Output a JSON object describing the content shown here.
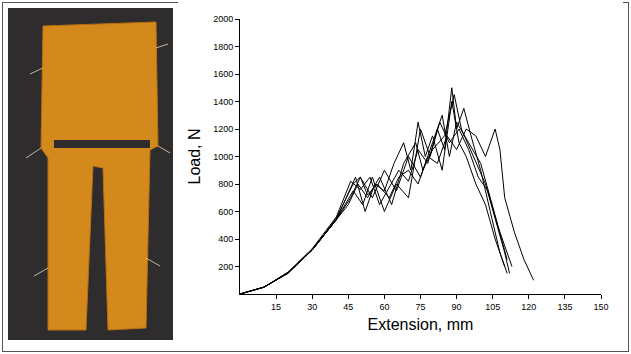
{
  "chart_data": {
    "type": "line",
    "xlabel": "Extension, mm",
    "ylabel": "Load, N",
    "xlim": [
      0,
      150
    ],
    "ylim": [
      0,
      2000
    ],
    "xticks": [
      15,
      30,
      45,
      60,
      75,
      90,
      105,
      120,
      135,
      150
    ],
    "yticks": [
      200,
      400,
      600,
      800,
      1000,
      1200,
      1400,
      1600,
      1800,
      2000
    ],
    "grid": false,
    "color": "#000000",
    "series": [
      {
        "x": [
          0,
          10,
          20,
          30,
          40,
          47,
          50,
          53,
          57,
          62,
          66,
          70,
          74,
          78,
          82,
          86,
          90,
          94,
          98,
          102,
          106,
          108,
          110,
          114,
          118,
          122
        ],
        "values": [
          0,
          50,
          150,
          320,
          550,
          800,
          850,
          720,
          800,
          700,
          850,
          900,
          800,
          1000,
          950,
          1150,
          1050,
          1200,
          1150,
          1000,
          1200,
          1050,
          700,
          450,
          250,
          100
        ]
      },
      {
        "x": [
          0,
          10,
          20,
          30,
          40,
          46,
          50,
          54,
          58,
          62,
          66,
          70,
          74,
          78,
          82,
          85,
          88,
          90,
          93,
          96,
          100,
          104,
          108,
          111
        ],
        "values": [
          0,
          50,
          160,
          330,
          560,
          820,
          760,
          850,
          650,
          780,
          900,
          820,
          1050,
          950,
          1200,
          1050,
          1500,
          1200,
          1350,
          1150,
          900,
          600,
          300,
          150
        ]
      },
      {
        "x": [
          0,
          10,
          20,
          30,
          40,
          48,
          52,
          56,
          60,
          64,
          68,
          71,
          74,
          77,
          80,
          84,
          88,
          91,
          94,
          98,
          102,
          106,
          110
        ],
        "values": [
          0,
          50,
          155,
          320,
          540,
          850,
          600,
          800,
          750,
          950,
          1100,
          900,
          1250,
          1000,
          1150,
          900,
          1400,
          1100,
          1000,
          800,
          650,
          400,
          200
        ]
      },
      {
        "x": [
          0,
          10,
          20,
          30,
          40,
          46,
          50,
          55,
          60,
          65,
          70,
          75,
          80,
          84,
          87,
          90,
          95,
          100,
          104,
          108,
          111
        ],
        "values": [
          0,
          50,
          155,
          320,
          540,
          700,
          850,
          700,
          900,
          750,
          1000,
          850,
          1100,
          1300,
          1000,
          1250,
          1100,
          950,
          700,
          450,
          250
        ]
      },
      {
        "x": [
          0,
          10,
          20,
          30,
          40,
          45,
          49,
          53,
          58,
          63,
          68,
          73,
          76,
          80,
          85,
          89,
          92,
          97,
          102,
          106,
          110,
          112
        ],
        "values": [
          0,
          50,
          155,
          320,
          540,
          650,
          800,
          700,
          850,
          650,
          950,
          1100,
          900,
          1050,
          1150,
          1450,
          1200,
          1000,
          800,
          550,
          300,
          150
        ]
      },
      {
        "x": [
          0,
          10,
          20,
          30,
          40,
          47,
          51,
          55,
          60,
          65,
          70,
          75,
          79,
          83,
          87,
          91,
          95,
          99,
          103,
          107,
          110,
          113
        ],
        "values": [
          0,
          50,
          155,
          320,
          540,
          750,
          650,
          850,
          600,
          800,
          700,
          1200,
          1000,
          1250,
          1100,
          1200,
          1050,
          850,
          750,
          500,
          350,
          200
        ]
      }
    ]
  }
}
